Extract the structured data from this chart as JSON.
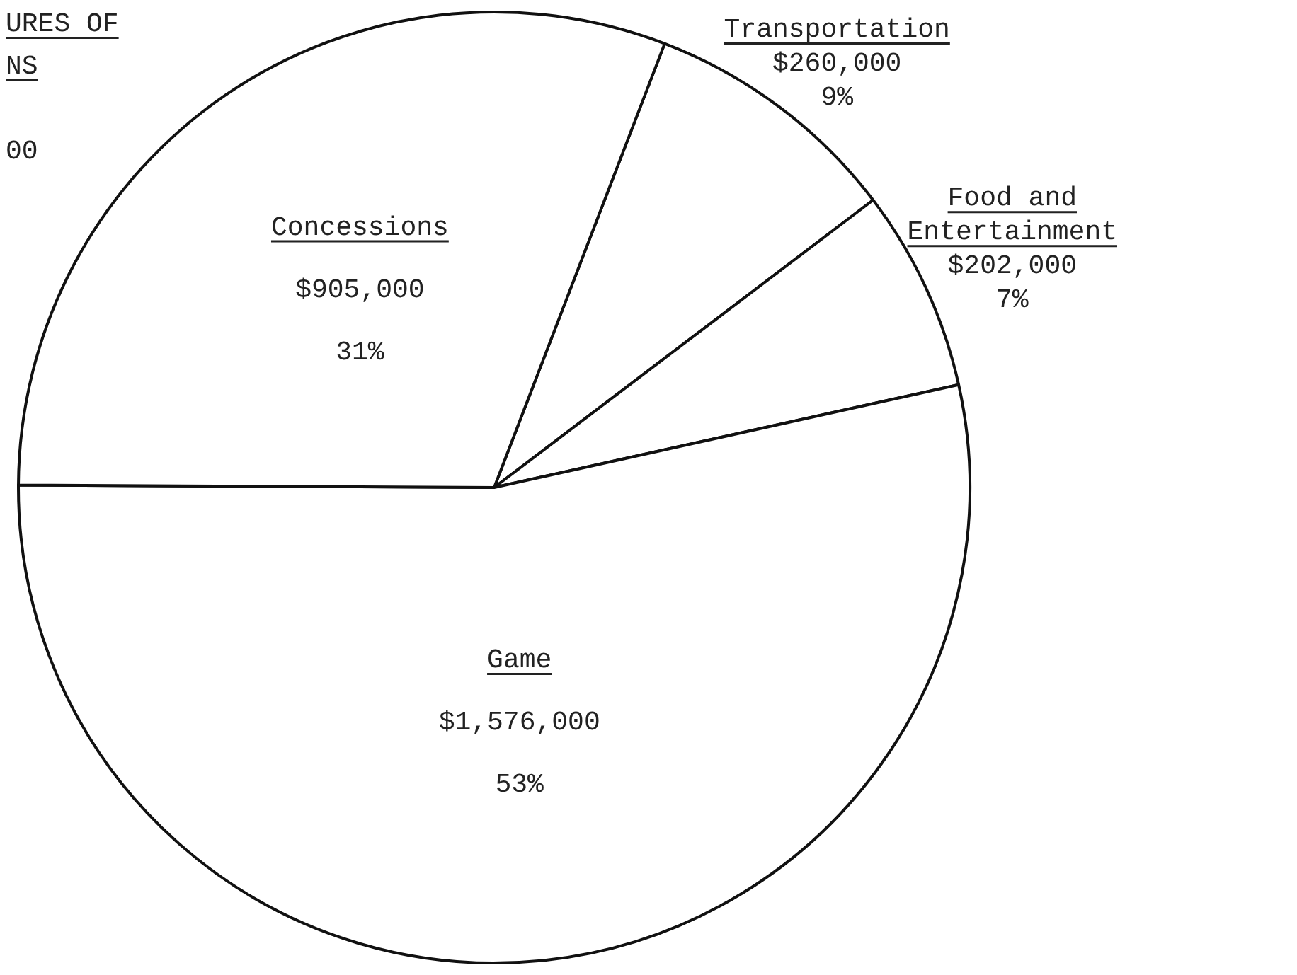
{
  "chart_data": {
    "type": "pie",
    "title": "URES OF\nNS",
    "annotations": [
      "00"
    ],
    "categories": [
      "Transportation",
      "Food and Entertainment",
      "Game",
      "Concessions"
    ],
    "values": [
      260000,
      202000,
      1576000,
      905000
    ],
    "colors": [
      "#ffffff",
      "#ffffff",
      "#ffffff",
      "#ffffff"
    ],
    "value_labels": [
      "$260,000\n9%",
      "$202,000\n7%",
      "$1,576,000\n53%",
      "$905,000\n31%"
    ],
    "legend": false
  }
}
